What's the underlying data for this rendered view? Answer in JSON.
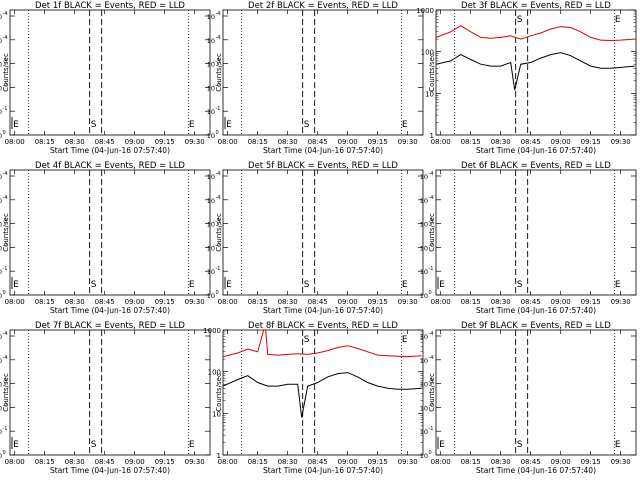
{
  "x_ticks": [
    "08:00",
    "08:15",
    "08:30",
    "08:45",
    "09:00",
    "09:15",
    "09:30"
  ],
  "x_label": "Start Time (04-Jun-16 07:57:40)",
  "y_label": "Counts/sec",
  "y_ticks_linear": [
    "1000",
    "100",
    "10",
    "1"
  ],
  "y_ticks_sci_mantissa": "10",
  "y_ticks_sci_exponents": [
    "-4",
    "-4",
    "-3",
    "-2",
    "-1",
    "0"
  ],
  "marker_s": "S",
  "marker_e": "E",
  "colors": {
    "events": "#000000",
    "lld": "#e00000"
  },
  "chart_data": [
    {
      "type": "line",
      "title": "Det 1f BLACK = Events, RED = LLD",
      "xlim": [
        "07:57:40",
        "09:37:40"
      ],
      "ylim": [
        0,
        1
      ],
      "y_scale": "flat",
      "series": []
    },
    {
      "type": "line",
      "title": "Det 2f BLACK = Events, RED = LLD",
      "xlim": [
        "07:57:40",
        "09:37:40"
      ],
      "ylim": [
        0,
        1
      ],
      "y_scale": "flat",
      "series": []
    },
    {
      "type": "line",
      "title": "Det 3f BLACK = Events, RED = LLD",
      "xlim": [
        "07:57:40",
        "09:37:40"
      ],
      "ylim": [
        1,
        1000
      ],
      "y_scale": "log",
      "series": [
        {
          "name": "LLD",
          "color": "#e00000",
          "x": [
            "07:57:40",
            "08:05",
            "08:10",
            "08:15",
            "08:20",
            "08:25",
            "08:30",
            "08:35",
            "08:40",
            "08:45",
            "08:50",
            "08:55",
            "09:00",
            "09:05",
            "09:10",
            "09:15",
            "09:20",
            "09:25",
            "09:30",
            "09:37"
          ],
          "y": [
            220,
            300,
            420,
            300,
            220,
            210,
            220,
            240,
            200,
            240,
            280,
            350,
            400,
            380,
            300,
            220,
            190,
            185,
            190,
            200
          ]
        },
        {
          "name": "Events",
          "color": "#000000",
          "x": [
            "07:57:40",
            "08:05",
            "08:10",
            "08:15",
            "08:20",
            "08:25",
            "08:30",
            "08:35",
            "08:37",
            "08:40",
            "08:45",
            "08:50",
            "08:55",
            "09:00",
            "09:05",
            "09:10",
            "09:15",
            "09:20",
            "09:25",
            "09:30",
            "09:37"
          ],
          "y": [
            50,
            60,
            85,
            65,
            50,
            45,
            45,
            55,
            12,
            50,
            55,
            70,
            85,
            95,
            80,
            60,
            45,
            40,
            40,
            42,
            45
          ]
        }
      ]
    },
    {
      "type": "line",
      "title": "Det 4f BLACK = Events, RED = LLD",
      "xlim": [
        "07:57:40",
        "09:37:40"
      ],
      "ylim": [
        0,
        1
      ],
      "y_scale": "flat",
      "series": []
    },
    {
      "type": "line",
      "title": "Det 5f BLACK = Events, RED = LLD",
      "xlim": [
        "07:57:40",
        "09:37:40"
      ],
      "ylim": [
        0,
        1
      ],
      "y_scale": "flat",
      "series": []
    },
    {
      "type": "line",
      "title": "Det 6f BLACK = Events, RED = LLD",
      "xlim": [
        "07:57:40",
        "09:37:40"
      ],
      "ylim": [
        0,
        1
      ],
      "y_scale": "flat",
      "series": []
    },
    {
      "type": "line",
      "title": "Det 7f BLACK = Events, RED = LLD",
      "xlim": [
        "07:57:40",
        "09:37:40"
      ],
      "ylim": [
        0,
        1
      ],
      "y_scale": "flat",
      "series": []
    },
    {
      "type": "line",
      "title": "Det 8f BLACK = Events, RED = LLD",
      "xlim": [
        "07:57:40",
        "09:37:40"
      ],
      "ylim": [
        1,
        1000
      ],
      "y_scale": "log",
      "series": [
        {
          "name": "LLD",
          "color": "#e00000",
          "x": [
            "07:57:40",
            "08:05",
            "08:10",
            "08:15",
            "08:18",
            "08:19",
            "08:20",
            "08:25",
            "08:30",
            "08:35",
            "08:40",
            "08:45",
            "08:50",
            "08:55",
            "09:00",
            "09:05",
            "09:10",
            "09:15",
            "09:20",
            "09:25",
            "09:30",
            "09:37"
          ],
          "y": [
            230,
            280,
            350,
            300,
            1000,
            1000,
            260,
            250,
            260,
            270,
            260,
            280,
            320,
            380,
            420,
            360,
            300,
            250,
            240,
            235,
            230,
            240
          ]
        },
        {
          "name": "Events",
          "color": "#000000",
          "x": [
            "07:57:40",
            "08:05",
            "08:10",
            "08:15",
            "08:20",
            "08:25",
            "08:30",
            "08:35",
            "08:37",
            "08:40",
            "08:45",
            "08:50",
            "08:55",
            "09:00",
            "09:05",
            "09:10",
            "09:15",
            "09:20",
            "09:25",
            "09:30",
            "09:37"
          ],
          "y": [
            45,
            65,
            80,
            55,
            45,
            45,
            50,
            50,
            8,
            45,
            55,
            75,
            90,
            95,
            75,
            55,
            45,
            40,
            38,
            38,
            40
          ]
        }
      ]
    },
    {
      "type": "line",
      "title": "Det 9f BLACK = Events, RED = LLD",
      "xlim": [
        "07:57:40",
        "09:37:40"
      ],
      "ylim": [
        0,
        1
      ],
      "y_scale": "flat",
      "series": []
    }
  ]
}
